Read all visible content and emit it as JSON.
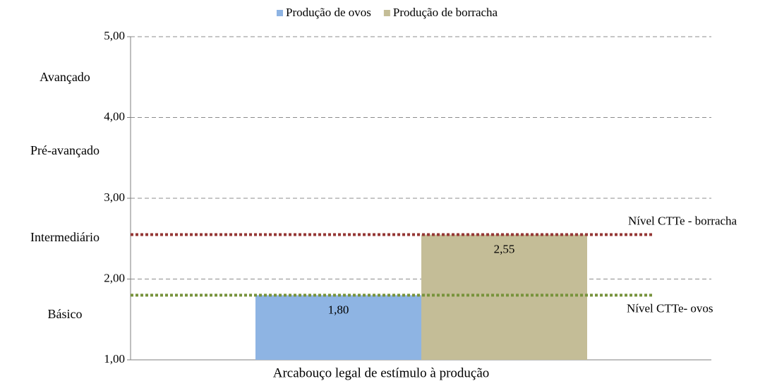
{
  "chart_data": {
    "type": "bar",
    "categories": [
      "Arcabouço legal de estímulo à produção"
    ],
    "series": [
      {
        "name": "Produção de ovos",
        "color": "#8eb4e3",
        "values": [
          1.8
        ],
        "value_labels": [
          "1,80"
        ]
      },
      {
        "name": "Produção de borracha",
        "color": "#c4bd97",
        "values": [
          2.55
        ],
        "value_labels": [
          "2,55"
        ]
      }
    ],
    "ylim": [
      1,
      5
    ],
    "yticks": [
      {
        "value": 1,
        "label": "1,00"
      },
      {
        "value": 2,
        "label": "2,00"
      },
      {
        "value": 3,
        "label": "3,00"
      },
      {
        "value": 4,
        "label": "4,00"
      },
      {
        "value": 5,
        "label": "5,00"
      }
    ],
    "grid": true,
    "legend": "top",
    "level_labels": [
      "Avançado",
      "Pré-avançado",
      "Intermediário",
      "Básico"
    ],
    "reference_lines": [
      {
        "label": "Nível CTTe - borracha",
        "value": 2.55,
        "color": "#953735"
      },
      {
        "label": "Nível CTTe- ovos",
        "value": 1.8,
        "color": "#77933c"
      }
    ]
  }
}
